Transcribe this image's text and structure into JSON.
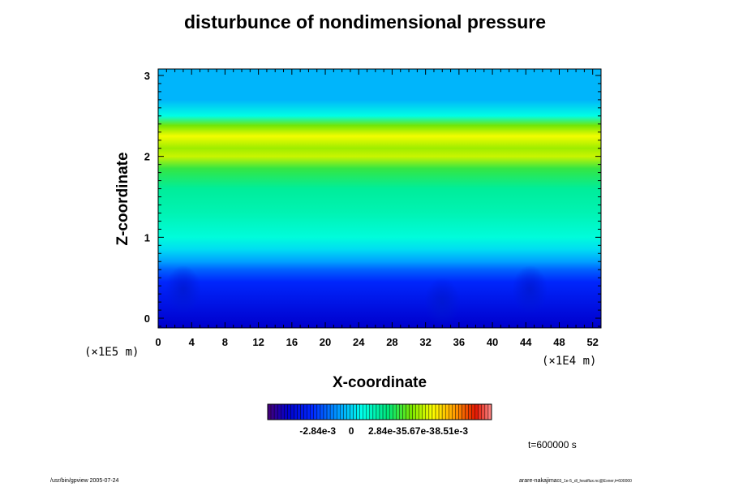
{
  "chart_data": {
    "type": "heatmap",
    "title": "disturbunce of nondimensional pressure",
    "xlabel": "X-coordinate",
    "ylabel": "Z-coordinate",
    "x_unit_label": "(×1E4 m)",
    "y_unit_label": "(×1E5 m)",
    "x_ticks": [
      "0",
      "4",
      "8",
      "12",
      "16",
      "20",
      "24",
      "28",
      "32",
      "36",
      "40",
      "44",
      "48",
      "52"
    ],
    "y_ticks": [
      "0",
      "1",
      "2",
      "3"
    ],
    "xlim": [
      0,
      53
    ],
    "ylim": [
      -0.12,
      3.08
    ],
    "colorbar": {
      "tick_labels": [
        "-2.84e-3",
        "0",
        "2.84e-3",
        "5.67e-3",
        "8.51e-3"
      ],
      "tick_values": [
        -0.00284,
        0,
        0.00284,
        0.00567,
        0.00851
      ],
      "range": [
        -0.00709,
        0.0119
      ]
    },
    "z_profile": [
      {
        "z": -0.12,
        "value": -0.0054
      },
      {
        "z": 0.0,
        "value": -0.005
      },
      {
        "z": 0.2,
        "value": -0.0043
      },
      {
        "z": 0.45,
        "value": -0.0034
      },
      {
        "z": 0.6,
        "value": -0.0022
      },
      {
        "z": 0.7,
        "value": -0.001
      },
      {
        "z": 0.85,
        "value": 0.0002
      },
      {
        "z": 1.0,
        "value": 0.0012
      },
      {
        "z": 1.3,
        "value": 0.002
      },
      {
        "z": 1.6,
        "value": 0.0025
      },
      {
        "z": 1.85,
        "value": 0.004
      },
      {
        "z": 2.0,
        "value": 0.0062
      },
      {
        "z": 2.1,
        "value": 0.0056
      },
      {
        "z": 2.25,
        "value": 0.0068
      },
      {
        "z": 2.38,
        "value": 0.005
      },
      {
        "z": 2.5,
        "value": 0.001
      },
      {
        "z": 2.7,
        "value": -0.0006
      },
      {
        "z": 3.08,
        "value": -0.0006
      }
    ],
    "local_minima": [
      {
        "x": 3,
        "z": 0.35
      },
      {
        "x": 34,
        "z": 0.2
      },
      {
        "x": 44.5,
        "z": 0.35
      }
    ],
    "time_label": "t=600000 s"
  },
  "footer": {
    "program": "/usr/bin/gpview 2005-07-24",
    "user": "arare-nakajima",
    "file": "03_1e-5_dl_heatflux.nc@Exner,t=600000"
  }
}
